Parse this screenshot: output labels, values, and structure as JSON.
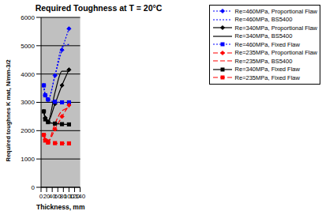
{
  "chart_data": {
    "type": "line",
    "title": "Required Toughness at T = 20°C",
    "x_label": "Thickness, mm",
    "y_label": "Required toughnes K mat, N/mm-3/2",
    "xlim": [
      0,
      140
    ],
    "xticks": [
      0,
      20,
      40,
      60,
      80,
      100,
      120,
      140
    ],
    "ylim": [
      0,
      6000
    ],
    "yticks": [
      0,
      1000,
      2000,
      3000,
      4000,
      5000,
      6000
    ],
    "grid": true,
    "legend": "upper right",
    "x": [
      10,
      15,
      25,
      50,
      75,
      100
    ],
    "series": [
      {
        "name": "Re=460MPa, Proportional Flaw",
        "color": "#0000ff",
        "marker": "diamond",
        "line_style": "dotted",
        "values": [
          3600,
          3250,
          3100,
          3950,
          4850,
          5600
        ]
      },
      {
        "name": "Re=460MPa, BS5400",
        "color": "#0000ff",
        "marker": "none",
        "line_style": "dotted",
        "values": [
          3600,
          3250,
          3100,
          3950,
          4950,
          5050
        ]
      },
      {
        "name": "Re=340MPa, Proportional Flaw",
        "color": "#000000",
        "marker": "diamond",
        "line_style": "solid",
        "values": [
          2680,
          2450,
          2320,
          2950,
          3600,
          4150
        ]
      },
      {
        "name": "Re=340MPa, BS5400",
        "color": "#000000",
        "marker": "none",
        "line_style": "solid",
        "values": [
          2680,
          2450,
          2330,
          3350,
          4100,
          4100
        ]
      },
      {
        "name": "Re=460MPa, Fixed Flaw",
        "color": "#0000ff",
        "marker": "square",
        "line_style": "dotted",
        "values": [
          3600,
          3250,
          3100,
          3020,
          3000,
          3000
        ]
      },
      {
        "name": "Re=235MPa, Proportional Flaw",
        "color": "#ff0000",
        "marker": "diamond",
        "line_style": "dashed",
        "values": [
          1850,
          1680,
          1620,
          2050,
          2500,
          2900
        ]
      },
      {
        "name": "Re=235MPa, BS5400",
        "color": "#ff0000",
        "marker": "none",
        "line_style": "dashed",
        "values": [
          1850,
          1680,
          1620,
          2250,
          2700,
          2800
        ]
      },
      {
        "name": "Re=340MPa, Fixed Flaw",
        "color": "#000000",
        "marker": "square",
        "line_style": "solid",
        "values": [
          2680,
          2400,
          2300,
          2250,
          2230,
          2220
        ]
      },
      {
        "name": "Re=235MPa, Fixed Flaw",
        "color": "#ff0000",
        "marker": "square",
        "line_style": "dashed",
        "values": [
          1850,
          1650,
          1580,
          1560,
          1550,
          1550
        ]
      }
    ]
  }
}
